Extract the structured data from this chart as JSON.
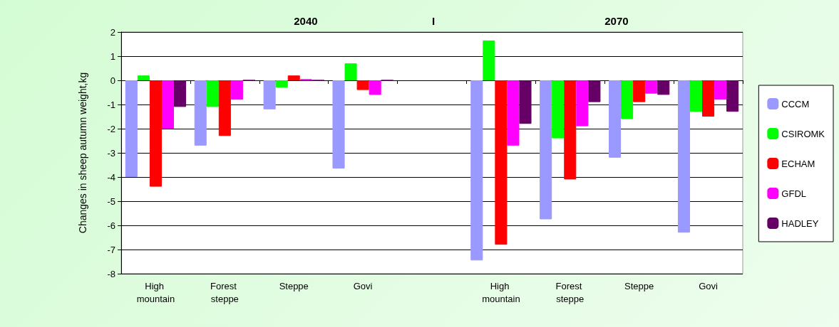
{
  "chart_data": {
    "type": "bar",
    "ylabel": "Changes in sheep autumn weight,kg",
    "annotations": [
      "2040",
      "I",
      "2070"
    ],
    "categories": [
      "High mountain",
      "Forest steppe",
      "Steppe",
      "Govi",
      null,
      "High mountain",
      "Forest steppe",
      "Steppe",
      "Govi"
    ],
    "series": [
      {
        "name": "CCCM",
        "color": "#9999ff",
        "values": [
          -4.0,
          -2.7,
          -1.2,
          -3.65,
          null,
          -7.45,
          -5.75,
          -3.2,
          -6.3
        ]
      },
      {
        "name": "CSIROMK",
        "color": "#00ff00",
        "values": [
          0.2,
          -1.1,
          -0.3,
          0.7,
          null,
          1.65,
          -2.4,
          -1.6,
          -1.3
        ]
      },
      {
        "name": "ECHAM",
        "color": "#ff0000",
        "values": [
          -4.4,
          -2.3,
          0.2,
          -0.4,
          null,
          -6.8,
          -4.1,
          -0.9,
          -1.5
        ]
      },
      {
        "name": "GFDL",
        "color": "#ff00ff",
        "values": [
          -2.0,
          -0.8,
          0.05,
          -0.6,
          null,
          -2.7,
          -1.9,
          -0.55,
          -0.8
        ]
      },
      {
        "name": "HADLEY",
        "color": "#660066",
        "values": [
          -1.1,
          0,
          0,
          0,
          null,
          -1.8,
          -0.9,
          -0.6,
          -1.3
        ]
      }
    ],
    "ylim": [
      -8,
      2
    ],
    "yticks": [
      -8,
      -7,
      -6,
      -5,
      -4,
      -3,
      -2,
      -1,
      0,
      1,
      2
    ],
    "grid": "y",
    "legend": "right"
  }
}
